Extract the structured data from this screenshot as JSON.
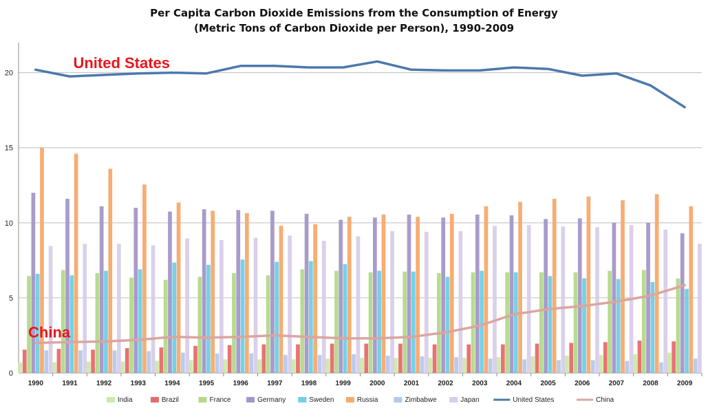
{
  "chart_data": {
    "type": "bar",
    "title_line1": "Per Capita Carbon Dioxide Emissions from the Consumption of Energy",
    "title_line2": "(Metric Tons of Carbon Dioxide per Person), 1990-2009",
    "xlabel": "",
    "ylabel": "",
    "ylim": [
      0,
      22
    ],
    "yticks": [
      0,
      5,
      10,
      15,
      20
    ],
    "grid": true,
    "legend_position": "bottom",
    "categories": [
      "1990",
      "1991",
      "1992",
      "1993",
      "1994",
      "1995",
      "1996",
      "1997",
      "1998",
      "1999",
      "2000",
      "2001",
      "2002",
      "2003",
      "2004",
      "2005",
      "2006",
      "2007",
      "2008",
      "2009"
    ],
    "series": [
      {
        "name": "India",
        "kind": "bar",
        "color": "#cde9a8",
        "values": [
          0.7,
          0.7,
          0.75,
          0.75,
          0.8,
          0.85,
          0.9,
          0.9,
          0.9,
          0.95,
          1.0,
          1.0,
          1.0,
          1.0,
          1.05,
          1.1,
          1.15,
          1.2,
          1.25,
          1.35
        ]
      },
      {
        "name": "Brazil",
        "kind": "bar",
        "color": "#e66c6a",
        "values": [
          1.55,
          1.6,
          1.55,
          1.65,
          1.7,
          1.8,
          1.85,
          1.9,
          1.9,
          1.95,
          1.95,
          1.95,
          1.9,
          1.9,
          1.9,
          1.95,
          2.0,
          2.05,
          2.15,
          2.1
        ]
      },
      {
        "name": "France",
        "kind": "bar",
        "color": "#b3d98a",
        "values": [
          6.45,
          6.85,
          6.65,
          6.35,
          6.2,
          6.4,
          6.65,
          6.5,
          6.9,
          6.8,
          6.7,
          6.75,
          6.65,
          6.7,
          6.7,
          6.7,
          6.7,
          6.8,
          6.85,
          6.3
        ]
      },
      {
        "name": "Germany",
        "kind": "bar",
        "color": "#a496c8",
        "values": [
          12.0,
          11.6,
          11.1,
          11.0,
          10.75,
          10.9,
          10.85,
          10.8,
          10.6,
          10.2,
          10.35,
          10.55,
          10.35,
          10.55,
          10.5,
          10.25,
          10.3,
          10.0,
          10.0,
          9.3
        ]
      },
      {
        "name": "Sweden",
        "kind": "bar",
        "color": "#6fcfe6",
        "values": [
          6.6,
          6.5,
          6.8,
          6.9,
          7.35,
          7.2,
          7.55,
          7.4,
          7.45,
          7.25,
          6.8,
          6.75,
          6.4,
          6.8,
          6.7,
          6.45,
          6.3,
          6.25,
          6.05,
          5.6
        ]
      },
      {
        "name": "Russia",
        "kind": "bar",
        "color": "#f7a96b",
        "values": [
          15.0,
          14.6,
          13.6,
          12.55,
          11.35,
          10.8,
          10.65,
          9.8,
          9.9,
          10.4,
          10.55,
          10.4,
          10.6,
          11.1,
          11.4,
          11.6,
          11.75,
          11.5,
          11.9,
          11.1
        ]
      },
      {
        "name": "Zimbabwe",
        "kind": "bar",
        "color": "#b6c8ec",
        "values": [
          1.5,
          1.5,
          1.5,
          1.45,
          1.35,
          1.3,
          1.3,
          1.2,
          1.2,
          1.25,
          1.15,
          1.1,
          1.05,
          0.95,
          0.9,
          0.85,
          0.85,
          0.8,
          0.7,
          0.95
        ]
      },
      {
        "name": "Japan",
        "kind": "bar",
        "color": "#d8cdea",
        "values": [
          8.45,
          8.6,
          8.6,
          8.5,
          8.95,
          8.85,
          9.0,
          9.15,
          8.8,
          9.1,
          9.45,
          9.4,
          9.45,
          9.8,
          9.85,
          9.75,
          9.7,
          9.85,
          9.55,
          8.6
        ]
      },
      {
        "name": "United States",
        "kind": "line",
        "color": "#4b79ab",
        "values": [
          20.2,
          19.75,
          19.85,
          19.95,
          20.0,
          19.95,
          20.45,
          20.45,
          20.35,
          20.35,
          20.75,
          20.2,
          20.15,
          20.15,
          20.35,
          20.25,
          19.8,
          19.95,
          19.15,
          17.7
        ]
      },
      {
        "name": "China",
        "kind": "line",
        "color": "#dba5a0",
        "values": [
          2.0,
          2.05,
          2.1,
          2.2,
          2.4,
          2.35,
          2.4,
          2.5,
          2.4,
          2.3,
          2.3,
          2.4,
          2.7,
          3.15,
          3.9,
          4.25,
          4.45,
          4.75,
          5.15,
          5.85
        ]
      }
    ],
    "annotations": [
      {
        "text": "United States",
        "series": "United States"
      },
      {
        "text": "China",
        "series": "China"
      }
    ]
  }
}
